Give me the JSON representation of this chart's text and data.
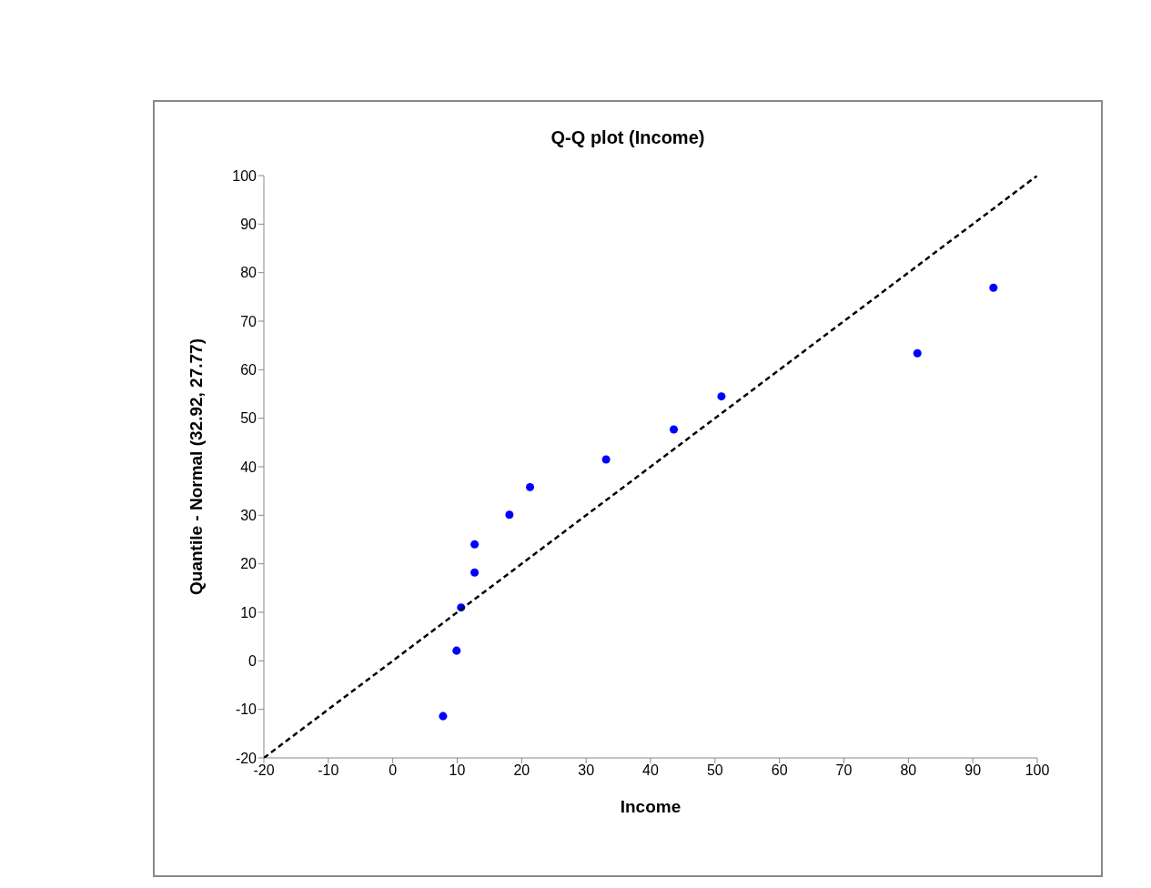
{
  "chart_data": {
    "type": "scatter",
    "title": "Q-Q plot (Income)",
    "xlabel": "Income",
    "ylabel": "Quantile - Normal (32.92, 27.77)",
    "xlim": [
      -20,
      100
    ],
    "xticks": [
      -20,
      -10,
      0,
      10,
      20,
      30,
      40,
      50,
      60,
      70,
      80,
      90,
      100
    ],
    "ylim": [
      -20,
      100
    ],
    "yticks": [
      -20,
      -10,
      0,
      10,
      20,
      30,
      40,
      50,
      60,
      70,
      80,
      90,
      100
    ],
    "grid": false,
    "series": [
      {
        "color": "#0000ff",
        "marker": "circle",
        "x": [
          7.8,
          9.9,
          10.6,
          12.7,
          12.7,
          18.1,
          21.3,
          33.1,
          43.6,
          51.0,
          81.4,
          93.2
        ],
        "values": [
          -11.4,
          2.1,
          11.0,
          18.2,
          24.0,
          30.1,
          35.8,
          41.5,
          47.7,
          54.5,
          63.4,
          76.9
        ]
      },
      {
        "type": "line",
        "color": "#000000",
        "marker": "none",
        "line_style": "dashed",
        "x": [
          -20,
          100
        ],
        "values": [
          -20,
          100
        ]
      }
    ]
  }
}
